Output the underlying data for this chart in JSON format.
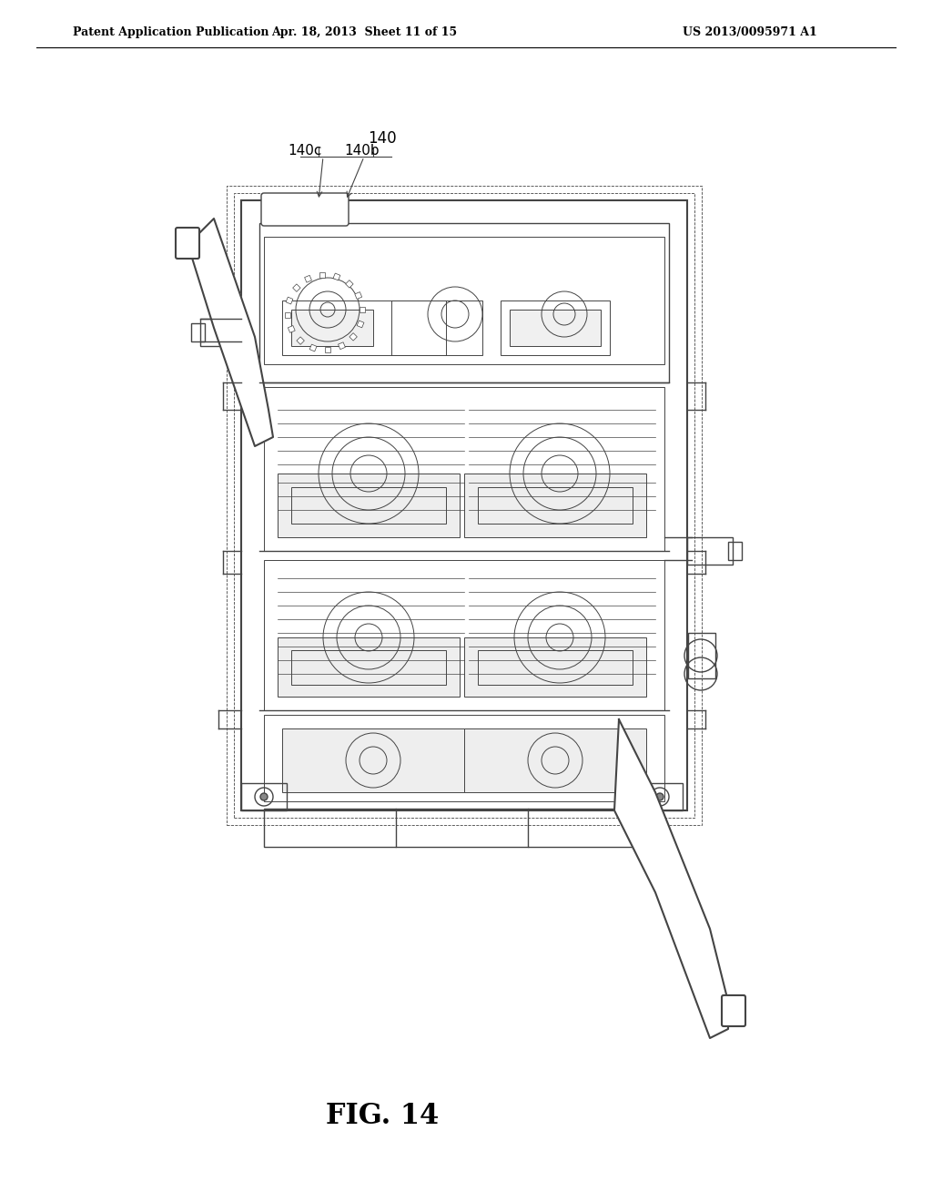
{
  "bg_color": "#ffffff",
  "header_left": "Patent Application Publication",
  "header_mid": "Apr. 18, 2013  Sheet 11 of 15",
  "header_right": "US 2013/0095971 A1",
  "fig_label": "FIG. 14",
  "label_140": "140",
  "label_140b": "140b",
  "label_140c": "140c",
  "line_color": "#444444",
  "header_font_size": 9,
  "fig_label_font_size": 22,
  "annotation_font_size": 11
}
